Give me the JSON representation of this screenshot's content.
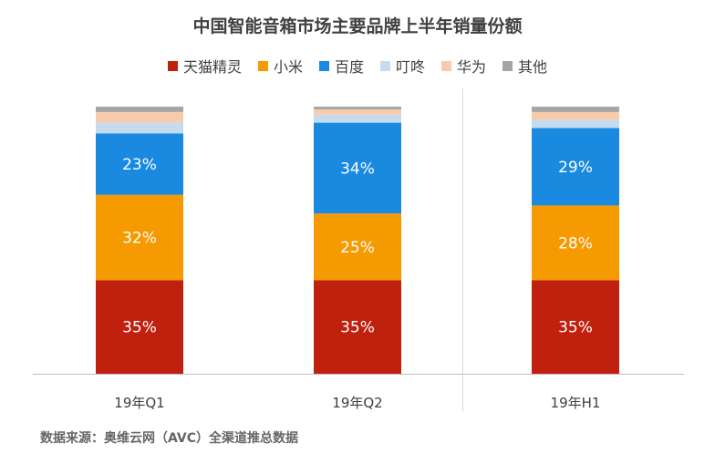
{
  "chart_data": {
    "type": "bar",
    "stacked": true,
    "normalized": true,
    "title": "中国智能音箱市场主要品牌上半年销量份额",
    "categories": [
      "19年Q1",
      "19年Q2",
      "19年H1"
    ],
    "series": [
      {
        "name": "天猫精灵",
        "color": "#C0200E",
        "values": [
          35,
          35,
          35
        ],
        "labels": [
          "35%",
          "35%",
          "35%"
        ]
      },
      {
        "name": "小米",
        "color": "#F59A00",
        "values": [
          32,
          25,
          28
        ],
        "labels": [
          "32%",
          "25%",
          "28%"
        ]
      },
      {
        "name": "百度",
        "color": "#1A8AE0",
        "values": [
          23,
          34,
          29
        ],
        "labels": [
          "23%",
          "34%",
          "29%"
        ]
      },
      {
        "name": "叮咚",
        "color": "#C5DCF0",
        "values": [
          4,
          3,
          3
        ],
        "labels": [
          "",
          "",
          ""
        ]
      },
      {
        "name": "华为",
        "color": "#F8CBAD",
        "values": [
          4,
          2,
          3
        ],
        "labels": [
          "",
          "",
          ""
        ]
      },
      {
        "name": "其他",
        "color": "#A5A5A5",
        "values": [
          2,
          1,
          2
        ],
        "labels": [
          "",
          "",
          ""
        ]
      }
    ],
    "ylim": [
      0,
      100
    ],
    "legend": "top"
  },
  "source": "数据来源：奥维云网（AVC）全渠道推总数据"
}
